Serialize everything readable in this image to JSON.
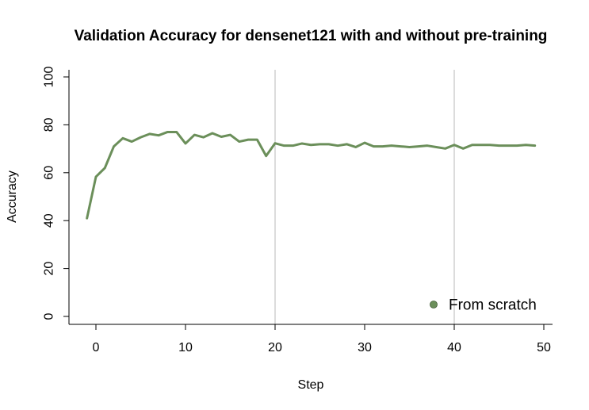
{
  "chart_data": {
    "type": "line",
    "title": "Validation Accuracy for densenet121 with and without pre-training",
    "xlabel": "Step",
    "ylabel": "Accuracy",
    "xlim": [
      -3,
      51
    ],
    "ylim": [
      -4,
      104
    ],
    "xticks": [
      0,
      10,
      20,
      30,
      40,
      50
    ],
    "yticks": [
      0,
      20,
      40,
      60,
      80,
      100
    ],
    "vlines": [
      20,
      40
    ],
    "grid": false,
    "legend_position": "bottom-right",
    "series": [
      {
        "name": "From scratch",
        "color": "#6b8f5a",
        "x": [
          -1,
          0,
          1,
          2,
          3,
          4,
          5,
          6,
          7,
          8,
          9,
          10,
          11,
          12,
          13,
          14,
          15,
          16,
          17,
          18,
          19,
          20,
          21,
          22,
          23,
          24,
          25,
          26,
          27,
          28,
          29,
          30,
          31,
          32,
          33,
          34,
          35,
          36,
          37,
          38,
          39,
          40,
          41,
          42,
          43,
          44,
          45,
          46,
          47,
          48,
          49
        ],
        "values": [
          41,
          58.3,
          62,
          71,
          74.4,
          73,
          74.8,
          76.2,
          75.6,
          77,
          77,
          72.2,
          75.8,
          74.8,
          76.5,
          75,
          75.8,
          73,
          73.8,
          73.8,
          67,
          72.3,
          71.3,
          71.3,
          72.2,
          71.6,
          71.9,
          71.9,
          71.3,
          71.9,
          70.7,
          72.5,
          71,
          71,
          71.3,
          71,
          70.7,
          71,
          71.3,
          70.7,
          70.1,
          71.6,
          70.1,
          71.6,
          71.6,
          71.6,
          71.3,
          71.3,
          71.3,
          71.6,
          71.3
        ]
      }
    ]
  }
}
